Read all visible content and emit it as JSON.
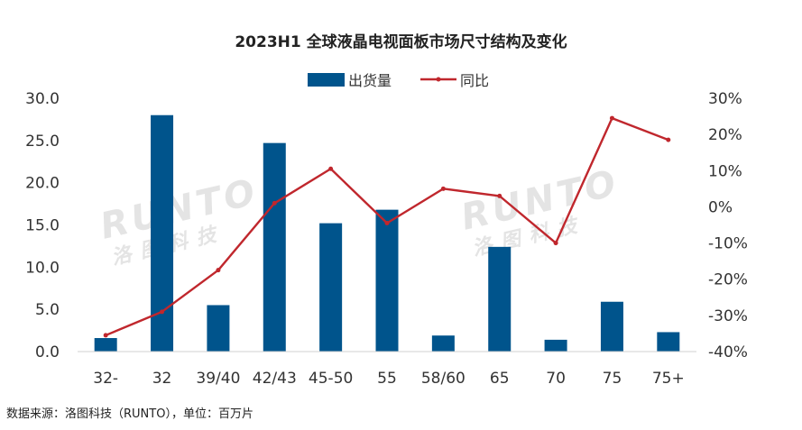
{
  "chart_data": {
    "type": "bar+line",
    "title": "2023H1 全球液晶电视面板市场尺寸结构及变化",
    "categories": [
      "32-",
      "32",
      "39/40",
      "42/43",
      "45-50",
      "55",
      "58/60",
      "65",
      "70",
      "75",
      "75+"
    ],
    "series": [
      {
        "name": "出货量",
        "type": "bar",
        "axis": "left",
        "values": [
          1.6,
          28.0,
          5.5,
          24.7,
          15.2,
          16.8,
          1.9,
          12.4,
          1.4,
          5.9,
          2.3
        ]
      },
      {
        "name": "同比",
        "type": "line",
        "axis": "right",
        "values": [
          -35.5,
          -29.0,
          -17.5,
          1.0,
          10.5,
          -4.5,
          5.0,
          3.0,
          -10.0,
          24.5,
          18.5
        ]
      }
    ],
    "y_left": {
      "min": 0,
      "max": 30,
      "ticks": [
        "0.0",
        "5.0",
        "10.0",
        "15.0",
        "20.0",
        "25.0",
        "30.0"
      ]
    },
    "y_right": {
      "min": -40,
      "max": 30,
      "ticks": [
        "-40%",
        "-30%",
        "-20%",
        "-10%",
        "0%",
        "10%",
        "20%",
        "30%"
      ]
    },
    "grid": false,
    "legend_position": "top-center",
    "colors": {
      "bar": "#00548c",
      "line": "#c0272d"
    }
  },
  "watermark": {
    "brand": "RUNTO",
    "cn": "洛图科技"
  },
  "source_note": "数据来源：洛图科技（RUNTO），单位：百万片"
}
